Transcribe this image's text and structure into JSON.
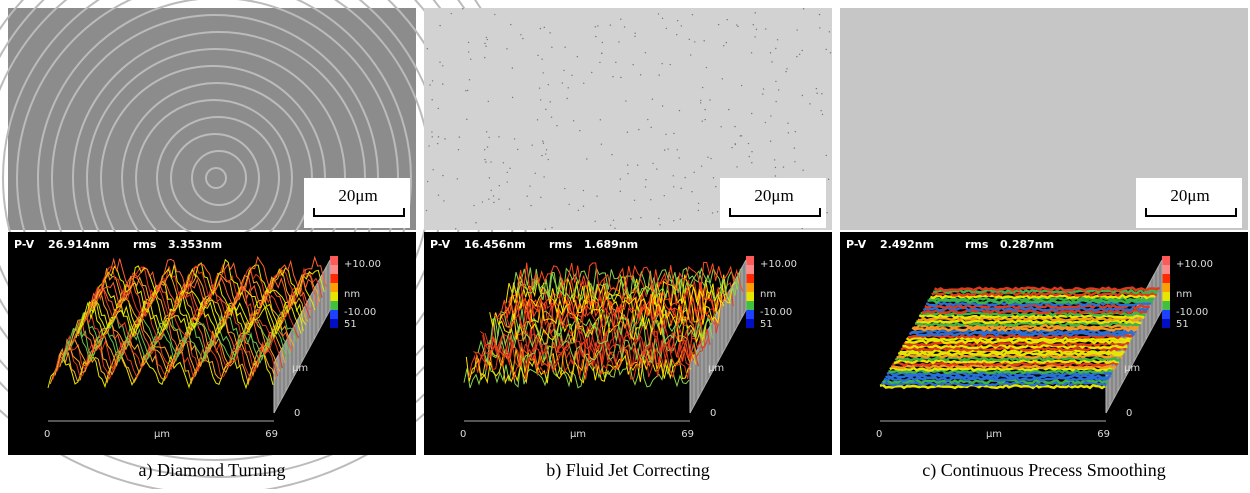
{
  "panels": [
    {
      "scale_bar": "20μm",
      "pv_label": "P-V",
      "pv": "26.914nm",
      "rms_label": "rms",
      "rms": "3.353nm",
      "colorbar": [
        "+10.00",
        "nm",
        "-10.00",
        "51"
      ],
      "x_axis": [
        "0",
        "μm",
        "69"
      ],
      "y_axis": [
        "μm",
        "0"
      ],
      "caption": "a) Diamond Turning"
    },
    {
      "scale_bar": "20μm",
      "pv_label": "P-V",
      "pv": "16.456nm",
      "rms_label": "rms",
      "rms": "1.689nm",
      "colorbar": [
        "+10.00",
        "nm",
        "-10.00",
        "51"
      ],
      "x_axis": [
        "0",
        "μm",
        "69"
      ],
      "y_axis": [
        "μm",
        "0"
      ],
      "caption": "b) Fluid Jet Correcting"
    },
    {
      "scale_bar": "20μm",
      "pv_label": "P-V",
      "pv": "2.492nm",
      "rms_label": "rms",
      "rms": "0.287nm",
      "colorbar": [
        "+10.00",
        "nm",
        "-10.00",
        "51"
      ],
      "x_axis": [
        "0",
        "μm",
        "69"
      ],
      "y_axis": [
        "μm",
        "0"
      ],
      "caption": "c) Continuous Precess Smoothing"
    }
  ]
}
